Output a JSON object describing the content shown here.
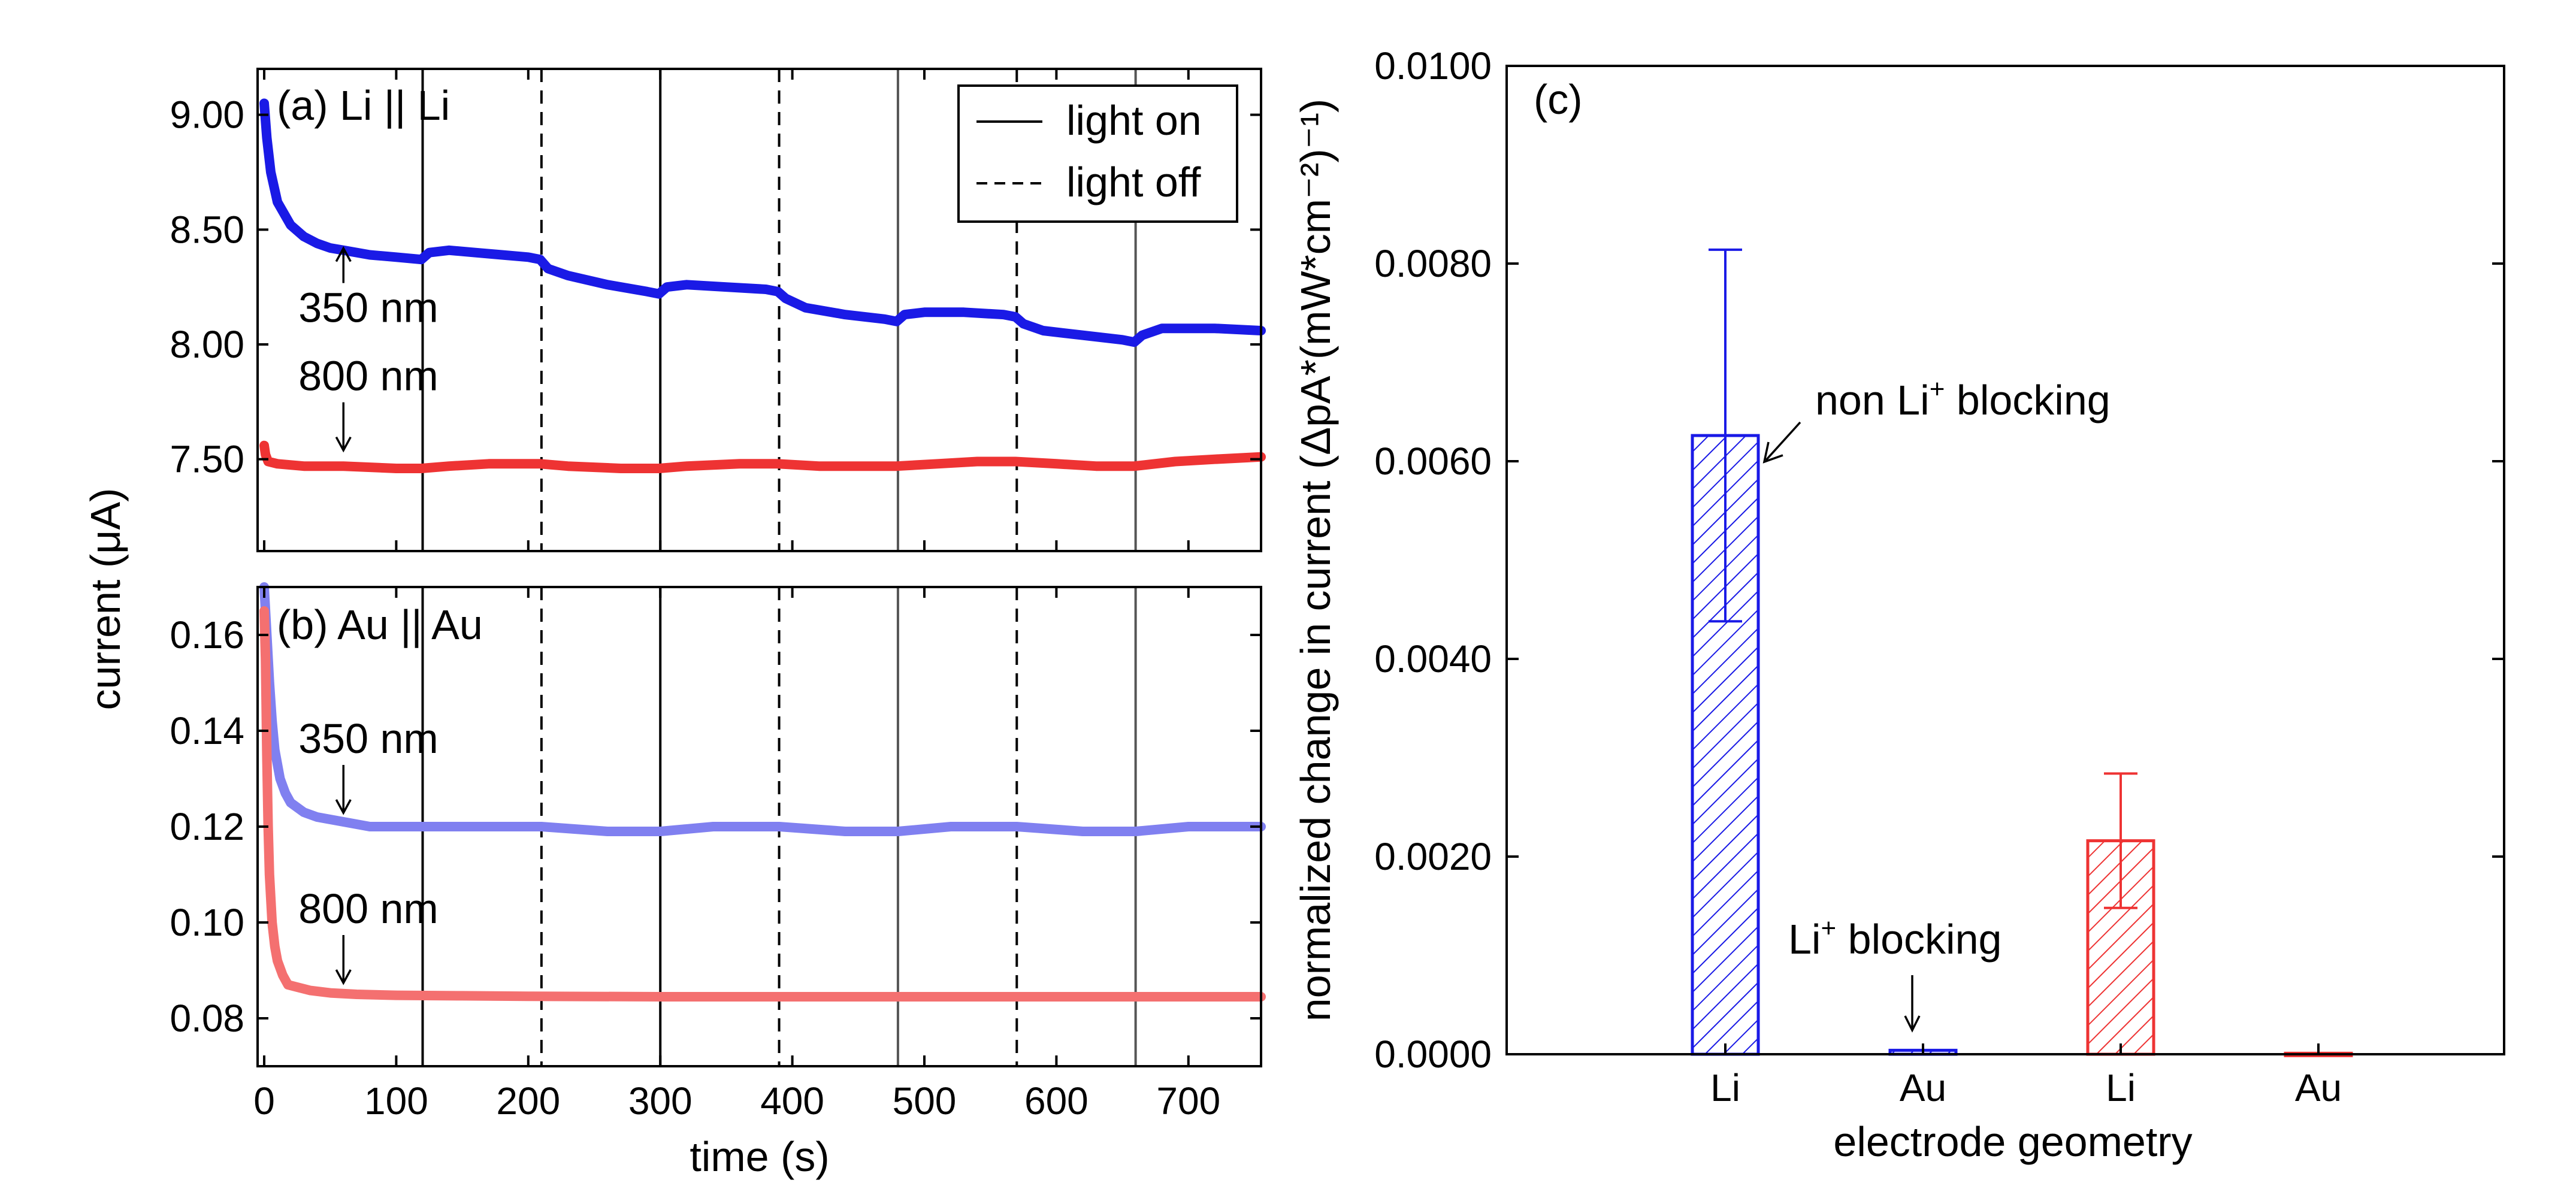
{
  "figure": {
    "ylabel_left": "current (μA)",
    "xlabel_left": "time (s)",
    "legend": {
      "solid_label": "light on",
      "dashed_label": "light off"
    }
  },
  "colors": {
    "blue": "#1a1ae6",
    "light_blue": "#8080f0",
    "red": "#ee3333",
    "light_red": "#f47070",
    "vline_gray": "#777777"
  },
  "chart_data": [
    {
      "id": "a",
      "type": "line",
      "title": "(a) Li || Li",
      "xlabel": "",
      "ylabel": "current (μA)",
      "xlim": [
        -5,
        755
      ],
      "ylim": [
        7.1,
        9.2
      ],
      "xticks": [
        0,
        100,
        200,
        300,
        400,
        500,
        600,
        700
      ],
      "yticks": [
        7.5,
        8.0,
        8.5,
        9.0
      ],
      "ytick_labels": [
        "7.50",
        "8.00",
        "8.50",
        "9.00"
      ],
      "light_on_times": [
        120,
        300,
        480,
        660
      ],
      "light_off_times": [
        210,
        390,
        570
      ],
      "series": [
        {
          "name": "350 nm",
          "color": "#1a1ae6",
          "x": [
            0,
            2,
            5,
            10,
            20,
            30,
            40,
            50,
            60,
            80,
            100,
            119,
            125,
            140,
            160,
            180,
            200,
            209,
            215,
            230,
            260,
            290,
            299,
            305,
            320,
            350,
            380,
            389,
            395,
            410,
            440,
            470,
            479,
            485,
            500,
            530,
            560,
            569,
            575,
            590,
            620,
            650,
            659,
            665,
            680,
            720,
            755
          ],
          "y": [
            9.05,
            8.9,
            8.75,
            8.62,
            8.52,
            8.47,
            8.44,
            8.42,
            8.41,
            8.39,
            8.38,
            8.37,
            8.4,
            8.41,
            8.4,
            8.39,
            8.38,
            8.37,
            8.33,
            8.3,
            8.26,
            8.23,
            8.22,
            8.25,
            8.26,
            8.25,
            8.24,
            8.23,
            8.2,
            8.16,
            8.13,
            8.11,
            8.1,
            8.13,
            8.14,
            8.14,
            8.13,
            8.12,
            8.09,
            8.06,
            8.04,
            8.02,
            8.01,
            8.04,
            8.07,
            8.07,
            8.06
          ]
        },
        {
          "name": "800 nm",
          "color": "#ee3333",
          "x": [
            0,
            1,
            3,
            10,
            30,
            60,
            100,
            119,
            140,
            170,
            209,
            230,
            270,
            299,
            320,
            360,
            389,
            420,
            450,
            479,
            510,
            540,
            569,
            600,
            630,
            659,
            690,
            720,
            755
          ],
          "y": [
            7.56,
            7.52,
            7.49,
            7.48,
            7.47,
            7.47,
            7.46,
            7.46,
            7.47,
            7.48,
            7.48,
            7.47,
            7.46,
            7.46,
            7.47,
            7.48,
            7.48,
            7.47,
            7.47,
            7.47,
            7.48,
            7.49,
            7.49,
            7.48,
            7.47,
            7.47,
            7.49,
            7.5,
            7.51
          ]
        }
      ],
      "annotations": [
        {
          "text": "350 nm",
          "points_to_x": 60,
          "points_to_y": 8.45
        },
        {
          "text": "800 nm",
          "points_to_x": 60,
          "points_to_y": 7.5
        }
      ]
    },
    {
      "id": "b",
      "type": "line",
      "title": "(b) Au || Au",
      "xlabel": "time (s)",
      "ylabel": "current (μA)",
      "xlim": [
        -5,
        755
      ],
      "ylim": [
        0.07,
        0.17
      ],
      "xticks": [
        0,
        100,
        200,
        300,
        400,
        500,
        600,
        700
      ],
      "xtick_labels": [
        "0",
        "100",
        "200",
        "300",
        "400",
        "500",
        "600",
        "700"
      ],
      "yticks": [
        0.08,
        0.1,
        0.12,
        0.14,
        0.16
      ],
      "ytick_labels": [
        "0.08",
        "0.10",
        "0.12",
        "0.14",
        "0.16"
      ],
      "light_on_times": [
        120,
        300,
        480,
        660
      ],
      "light_off_times": [
        210,
        390,
        570
      ],
      "series": [
        {
          "name": "350 nm",
          "color": "#8080f0",
          "x": [
            0,
            2,
            4,
            6,
            8,
            12,
            16,
            20,
            30,
            40,
            60,
            80,
            100,
            120,
            160,
            210,
            260,
            300,
            340,
            390,
            440,
            480,
            520,
            570,
            620,
            660,
            700,
            755
          ],
          "y": [
            0.17,
            0.16,
            0.15,
            0.142,
            0.136,
            0.13,
            0.127,
            0.125,
            0.123,
            0.122,
            0.121,
            0.12,
            0.12,
            0.12,
            0.12,
            0.12,
            0.119,
            0.119,
            0.12,
            0.12,
            0.119,
            0.119,
            0.12,
            0.12,
            0.119,
            0.119,
            0.12,
            0.12
          ]
        },
        {
          "name": "800 nm",
          "color": "#f47070",
          "x": [
            0,
            1,
            2,
            3,
            4,
            6,
            8,
            10,
            14,
            18,
            25,
            35,
            50,
            70,
            100,
            150,
            200,
            300,
            400,
            500,
            600,
            700,
            755
          ],
          "y": [
            0.165,
            0.155,
            0.135,
            0.12,
            0.11,
            0.1,
            0.095,
            0.092,
            0.089,
            0.087,
            0.0865,
            0.0858,
            0.0853,
            0.085,
            0.0848,
            0.0847,
            0.0846,
            0.0845,
            0.0845,
            0.0845,
            0.0845,
            0.0845,
            0.0845
          ]
        }
      ],
      "annotations": [
        {
          "text": "350 nm",
          "points_to_x": 60,
          "points_to_y": 0.121
        },
        {
          "text": "800 nm",
          "points_to_x": 60,
          "points_to_y": 0.0855
        }
      ]
    },
    {
      "id": "c",
      "type": "bar",
      "title": "(c)",
      "xlabel": "electrode geometry",
      "ylabel": "normalized change in current (ΔpA*(mW*cm⁻²)⁻¹)",
      "categories": [
        "Li",
        "Au",
        "Li",
        "Au"
      ],
      "series": [
        {
          "name": "350 nm",
          "color": "#1a1ae6",
          "values": [
            0.00626,
            4e-05,
            null,
            null
          ],
          "errors": [
            0.00188,
            0.0,
            null,
            null
          ]
        },
        {
          "name": "800 nm",
          "color": "#ee3333",
          "values": [
            null,
            null,
            0.00216,
            1e-05
          ],
          "errors": [
            null,
            null,
            0.00068,
            0.0
          ]
        }
      ],
      "ylim": [
        0,
        0.01
      ],
      "yticks": [
        0,
        0.002,
        0.004,
        0.006,
        0.008,
        0.01
      ],
      "ytick_labels": [
        "0.0000",
        "0.0020",
        "0.0040",
        "0.0060",
        "0.0080",
        "0.0100"
      ],
      "annotations": [
        {
          "text_main": "non Li",
          "text_sup": "+",
          "text_tail": " blocking",
          "points_to_category": 0
        },
        {
          "text_main": "Li",
          "text_sup": "+",
          "text_tail": " blocking",
          "points_to_category": 1
        }
      ]
    }
  ]
}
